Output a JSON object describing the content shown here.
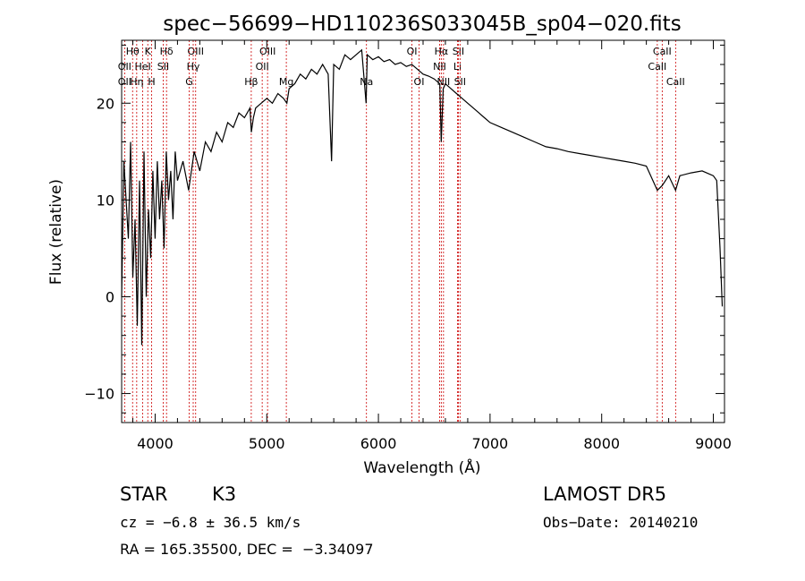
{
  "chart_data": {
    "type": "line",
    "title": "spec−56699−HD110236S033045B_sp04−020.fits",
    "xlabel": "Wavelength (Å)",
    "ylabel": "Flux (relative)",
    "xlim": [
      3700,
      9100
    ],
    "ylim": [
      -13,
      26.5
    ],
    "xticks": [
      4000,
      5000,
      6000,
      7000,
      8000,
      9000
    ],
    "yticks": [
      -10,
      0,
      10,
      20
    ],
    "series": [
      {
        "x": [
          3700,
          3720,
          3740,
          3760,
          3780,
          3800,
          3820,
          3840,
          3860,
          3880,
          3900,
          3920,
          3940,
          3960,
          3980,
          4000,
          4020,
          4040,
          4060,
          4080,
          4100,
          4120,
          4140,
          4160,
          4180,
          4200,
          4250,
          4300,
          4350,
          4400,
          4450,
          4500,
          4550,
          4600,
          4650,
          4700,
          4750,
          4800,
          4850,
          4862,
          4880,
          4900,
          4950,
          5000,
          5050,
          5100,
          5150,
          5180,
          5200,
          5250,
          5300,
          5350,
          5400,
          5450,
          5500,
          5550,
          5580,
          5600,
          5650,
          5700,
          5750,
          5800,
          5850,
          5890,
          5900,
          5950,
          6000,
          6050,
          6100,
          6150,
          6200,
          6250,
          6300,
          6350,
          6400,
          6450,
          6500,
          6550,
          6563,
          6580,
          6600,
          6650,
          6700,
          6750,
          6800,
          6850,
          6900,
          6950,
          7000,
          7100,
          7200,
          7300,
          7400,
          7500,
          7600,
          7700,
          7800,
          7900,
          8000,
          8100,
          8200,
          8300,
          8400,
          8498,
          8542,
          8600,
          8662,
          8700,
          8800,
          8900,
          9000,
          9030,
          9060,
          9080
        ],
        "y": [
          0,
          14,
          10,
          6,
          16,
          2,
          8,
          -3,
          12,
          -5,
          15,
          0,
          9,
          4,
          13,
          6,
          14,
          8,
          12,
          5,
          15,
          10,
          13,
          8,
          15,
          12,
          14,
          11,
          15,
          13,
          16,
          15,
          17,
          16,
          18,
          17.5,
          19,
          18.5,
          19.5,
          17,
          18.5,
          19.5,
          20,
          20.5,
          20,
          21,
          20.5,
          20,
          21.5,
          22,
          23,
          22.5,
          23.5,
          23,
          24,
          23,
          14,
          24,
          23.5,
          25,
          24.5,
          25,
          25.5,
          20,
          25,
          24.5,
          24.8,
          24.3,
          24.5,
          24,
          24.2,
          23.8,
          24,
          23.5,
          23,
          22.8,
          22.5,
          22,
          16,
          21.5,
          22,
          21.5,
          21,
          20.5,
          20,
          19.5,
          19,
          18.5,
          18,
          17.5,
          17,
          16.5,
          16,
          15.5,
          15.3,
          15,
          14.8,
          14.6,
          14.4,
          14.2,
          14,
          13.8,
          13.5,
          11,
          11.5,
          12.5,
          11,
          12.5,
          12.8,
          13,
          12.5,
          12,
          5,
          -1
        ]
      }
    ],
    "line_markers": [
      {
        "label": "Hθ",
        "x": 3798,
        "row": 0
      },
      {
        "label": "OII",
        "x": 3727,
        "row": 1
      },
      {
        "label": "OII",
        "x": 3727,
        "row": 2
      },
      {
        "label": "K",
        "x": 3934,
        "row": 0
      },
      {
        "label": "HeI",
        "x": 3889,
        "row": 1
      },
      {
        "label": "Hη",
        "x": 3835,
        "row": 2
      },
      {
        "label": "H",
        "x": 3969,
        "row": 2
      },
      {
        "label": "Hδ",
        "x": 4102,
        "row": 0
      },
      {
        "label": "SII",
        "x": 4072,
        "row": 1
      },
      {
        "label": "OIII",
        "x": 4363,
        "row": 0
      },
      {
        "label": "Hγ",
        "x": 4341,
        "row": 1
      },
      {
        "label": "G",
        "x": 4305,
        "row": 2
      },
      {
        "label": "OIII",
        "x": 5007,
        "row": 0
      },
      {
        "label": "OII",
        "x": 4959,
        "row": 1
      },
      {
        "label": "Hβ",
        "x": 4861,
        "row": 2
      },
      {
        "label": "Mg",
        "x": 5175,
        "row": 2
      },
      {
        "label": "Na",
        "x": 5893,
        "row": 3
      },
      {
        "label": "OI",
        "x": 6300,
        "row": 0
      },
      {
        "label": "OI",
        "x": 6364,
        "row": 2
      },
      {
        "label": "Hα",
        "x": 6563,
        "row": 0
      },
      {
        "label": "NII",
        "x": 6548,
        "row": 1
      },
      {
        "label": "NII",
        "x": 6583,
        "row": 2
      },
      {
        "label": "SII",
        "x": 6716,
        "row": 0
      },
      {
        "label": "Li",
        "x": 6708,
        "row": 1
      },
      {
        "label": "SII",
        "x": 6731,
        "row": 2
      },
      {
        "label": "CaII",
        "x": 8542,
        "row": 0
      },
      {
        "label": "CaII",
        "x": 8498,
        "row": 1
      },
      {
        "label": "CaII",
        "x": 8662,
        "row": 2
      }
    ],
    "grid": false,
    "line_color": "#000000",
    "marker_color": "#cc0000"
  },
  "info": {
    "obj_class": "STAR",
    "subclass": "K3",
    "survey": "LAMOST DR5",
    "cz": "cz = −6.8 ± 36.5 km/s",
    "obs_date": "Obs−Date: 20140210",
    "coords": "RA = 165.35500, DEC =  −3.34097"
  }
}
